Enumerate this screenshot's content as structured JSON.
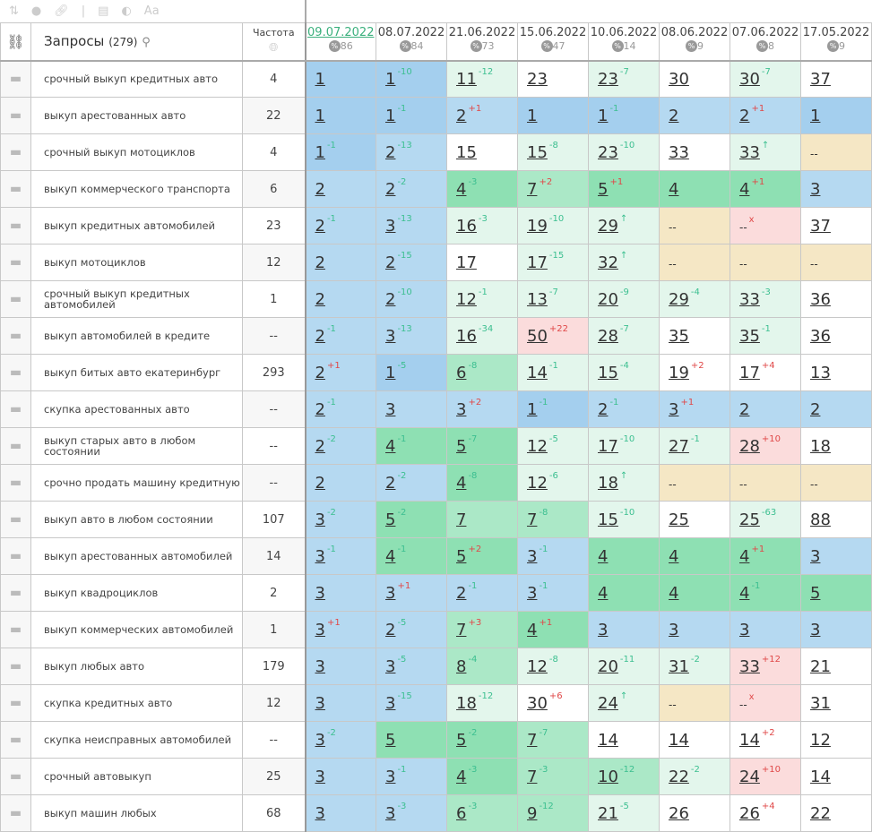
{
  "toolbar": {
    "icons": [
      "sort-icon",
      "toggle-icon",
      "link-icon",
      "calendar-icon",
      "contrast-icon",
      "font-icon"
    ]
  },
  "header": {
    "query_title": "Запросы",
    "query_count": "(279)",
    "freq_label": "Частота",
    "dates": [
      {
        "date": "09.07.2022",
        "pct": "86",
        "active": true
      },
      {
        "date": "08.07.2022",
        "pct": "84"
      },
      {
        "date": "21.06.2022",
        "pct": "73"
      },
      {
        "date": "15.06.2022",
        "pct": "47"
      },
      {
        "date": "10.06.2022",
        "pct": "14"
      },
      {
        "date": "08.06.2022",
        "pct": "9"
      },
      {
        "date": "07.06.2022",
        "pct": "8"
      },
      {
        "date": "17.05.2022",
        "pct": "9"
      }
    ]
  },
  "colors": {
    "top1": "#a4cfee",
    "top3": "#b5d9f1",
    "top5": "#8ee0b3",
    "top10": "#abe8c7",
    "improved": "#e3f6ec",
    "dropped": "#fbdcdc",
    "missing": "#f5e7c5",
    "accent": "#3bb07d"
  },
  "rows": [
    {
      "q": "срочный выкуп кредитных авто",
      "f": "4",
      "c": [
        [
          "1"
        ],
        [
          "1",
          "-10"
        ],
        [
          "11",
          "-12"
        ],
        [
          "23"
        ],
        [
          "23",
          "-7"
        ],
        [
          "30"
        ],
        [
          "30",
          "-7"
        ],
        [
          "37"
        ]
      ]
    },
    {
      "q": "выкуп арестованных авто",
      "f": "22",
      "c": [
        [
          "1"
        ],
        [
          "1",
          "-1"
        ],
        [
          "2",
          "+1"
        ],
        [
          "1"
        ],
        [
          "1",
          "-1"
        ],
        [
          "2"
        ],
        [
          "2",
          "+1"
        ],
        [
          "1"
        ]
      ]
    },
    {
      "q": "срочный выкуп мотоциклов",
      "f": "4",
      "c": [
        [
          "1",
          "-1"
        ],
        [
          "2",
          "-13"
        ],
        [
          "15"
        ],
        [
          "15",
          "-8"
        ],
        [
          "23",
          "-10"
        ],
        [
          "33"
        ],
        [
          "33",
          "↑"
        ],
        [
          "--"
        ]
      ]
    },
    {
      "q": "выкуп коммерческого транспорта",
      "f": "6",
      "c": [
        [
          "2"
        ],
        [
          "2",
          "-2"
        ],
        [
          "4",
          "-3"
        ],
        [
          "7",
          "+2"
        ],
        [
          "5",
          "+1"
        ],
        [
          "4"
        ],
        [
          "4",
          "+1"
        ],
        [
          "3"
        ]
      ]
    },
    {
      "q": "выкуп кредитных автомобилей",
      "f": "23",
      "c": [
        [
          "2",
          "-1"
        ],
        [
          "3",
          "-13"
        ],
        [
          "16",
          "-3"
        ],
        [
          "19",
          "-10"
        ],
        [
          "29",
          "↑"
        ],
        [
          "--"
        ],
        [
          "--",
          "x"
        ],
        [
          "37"
        ]
      ]
    },
    {
      "q": "выкуп мотоциклов",
      "f": "12",
      "c": [
        [
          "2"
        ],
        [
          "2",
          "-15"
        ],
        [
          "17"
        ],
        [
          "17",
          "-15"
        ],
        [
          "32",
          "↑"
        ],
        [
          "--"
        ],
        [
          "--"
        ],
        [
          "--"
        ]
      ]
    },
    {
      "q": "срочный выкуп кредитных автомобилей",
      "f": "1",
      "c": [
        [
          "2"
        ],
        [
          "2",
          "-10"
        ],
        [
          "12",
          "-1"
        ],
        [
          "13",
          "-7"
        ],
        [
          "20",
          "-9"
        ],
        [
          "29",
          "-4"
        ],
        [
          "33",
          "-3"
        ],
        [
          "36"
        ]
      ]
    },
    {
      "q": "выкуп автомобилей в кредите",
      "f": "--",
      "c": [
        [
          "2",
          "-1"
        ],
        [
          "3",
          "-13"
        ],
        [
          "16",
          "-34"
        ],
        [
          "50",
          "+22"
        ],
        [
          "28",
          "-7"
        ],
        [
          "35"
        ],
        [
          "35",
          "-1"
        ],
        [
          "36"
        ]
      ]
    },
    {
      "q": "выкуп битых авто екатеринбург",
      "f": "293",
      "c": [
        [
          "2",
          "+1"
        ],
        [
          "1",
          "-5"
        ],
        [
          "6",
          "-8"
        ],
        [
          "14",
          "-1"
        ],
        [
          "15",
          "-4"
        ],
        [
          "19",
          "+2"
        ],
        [
          "17",
          "+4"
        ],
        [
          "13"
        ]
      ]
    },
    {
      "q": "скупка арестованных авто",
      "f": "--",
      "c": [
        [
          "2",
          "-1"
        ],
        [
          "3"
        ],
        [
          "3",
          "+2"
        ],
        [
          "1",
          "-1"
        ],
        [
          "2",
          "-1"
        ],
        [
          "3",
          "+1"
        ],
        [
          "2"
        ],
        [
          "2"
        ]
      ]
    },
    {
      "q": "выкуп старых авто в любом состоянии",
      "f": "--",
      "c": [
        [
          "2",
          "-2"
        ],
        [
          "4",
          "-1"
        ],
        [
          "5",
          "-7"
        ],
        [
          "12",
          "-5"
        ],
        [
          "17",
          "-10"
        ],
        [
          "27",
          "-1"
        ],
        [
          "28",
          "+10"
        ],
        [
          "18"
        ]
      ]
    },
    {
      "q": "срочно продать машину кредитную",
      "f": "--",
      "c": [
        [
          "2"
        ],
        [
          "2",
          "-2"
        ],
        [
          "4",
          "-8"
        ],
        [
          "12",
          "-6"
        ],
        [
          "18",
          "↑"
        ],
        [
          "--"
        ],
        [
          "--"
        ],
        [
          "--"
        ]
      ]
    },
    {
      "q": "выкуп авто в любом состоянии",
      "f": "107",
      "c": [
        [
          "3",
          "-2"
        ],
        [
          "5",
          "-2"
        ],
        [
          "7"
        ],
        [
          "7",
          "-8"
        ],
        [
          "15",
          "-10"
        ],
        [
          "25"
        ],
        [
          "25",
          "-63"
        ],
        [
          "88"
        ]
      ]
    },
    {
      "q": "выкуп арестованных автомобилей",
      "f": "14",
      "c": [
        [
          "3",
          "-1"
        ],
        [
          "4",
          "-1"
        ],
        [
          "5",
          "+2"
        ],
        [
          "3",
          "-1"
        ],
        [
          "4"
        ],
        [
          "4"
        ],
        [
          "4",
          "+1"
        ],
        [
          "3"
        ]
      ]
    },
    {
      "q": "выкуп квадроциклов",
      "f": "2",
      "c": [
        [
          "3"
        ],
        [
          "3",
          "+1"
        ],
        [
          "2",
          "-1"
        ],
        [
          "3",
          "-1"
        ],
        [
          "4"
        ],
        [
          "4"
        ],
        [
          "4",
          "-1"
        ],
        [
          "5"
        ]
      ]
    },
    {
      "q": "выкуп коммерческих автомобилей",
      "f": "1",
      "c": [
        [
          "3",
          "+1"
        ],
        [
          "2",
          "-5"
        ],
        [
          "7",
          "+3"
        ],
        [
          "4",
          "+1"
        ],
        [
          "3"
        ],
        [
          "3"
        ],
        [
          "3"
        ],
        [
          "3"
        ]
      ]
    },
    {
      "q": "выкуп любых авто",
      "f": "179",
      "c": [
        [
          "3"
        ],
        [
          "3",
          "-5"
        ],
        [
          "8",
          "-4"
        ],
        [
          "12",
          "-8"
        ],
        [
          "20",
          "-11"
        ],
        [
          "31",
          "-2"
        ],
        [
          "33",
          "+12"
        ],
        [
          "21"
        ]
      ]
    },
    {
      "q": "скупка кредитных авто",
      "f": "12",
      "c": [
        [
          "3"
        ],
        [
          "3",
          "-15"
        ],
        [
          "18",
          "-12"
        ],
        [
          "30",
          "+6"
        ],
        [
          "24",
          "↑"
        ],
        [
          "--"
        ],
        [
          "--",
          "x"
        ],
        [
          "31"
        ]
      ]
    },
    {
      "q": "скупка неисправных автомобилей",
      "f": "--",
      "c": [
        [
          "3",
          "-2"
        ],
        [
          "5"
        ],
        [
          "5",
          "-2"
        ],
        [
          "7",
          "-7"
        ],
        [
          "14"
        ],
        [
          "14"
        ],
        [
          "14",
          "+2"
        ],
        [
          "12"
        ]
      ]
    },
    {
      "q": "срочный автовыкуп",
      "f": "25",
      "c": [
        [
          "3"
        ],
        [
          "3",
          "-1"
        ],
        [
          "4",
          "-3"
        ],
        [
          "7",
          "-3"
        ],
        [
          "10",
          "-12"
        ],
        [
          "22",
          "-2"
        ],
        [
          "24",
          "+10"
        ],
        [
          "14"
        ]
      ]
    },
    {
      "q": "выкуп машин любых",
      "f": "68",
      "c": [
        [
          "3"
        ],
        [
          "3",
          "-3"
        ],
        [
          "6",
          "-3"
        ],
        [
          "9",
          "-12"
        ],
        [
          "21",
          "-5"
        ],
        [
          "26"
        ],
        [
          "26",
          "+4"
        ],
        [
          "22"
        ]
      ]
    }
  ]
}
